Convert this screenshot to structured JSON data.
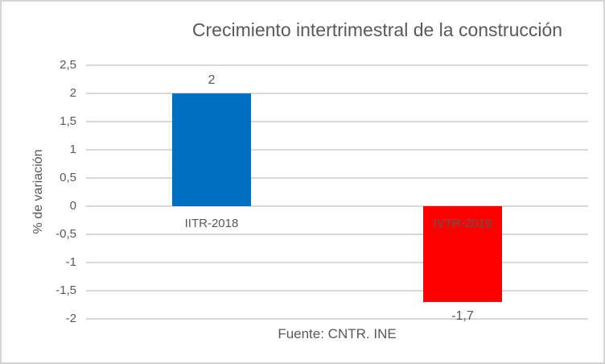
{
  "window": {
    "background": "#FFFFFF",
    "border_color": "#D6D3D3"
  },
  "chart_data": {
    "type": "bar",
    "title": "Crecimiento intertrimestral de la construcción",
    "ylabel": "% de variación",
    "xlabel": "",
    "source": "Fuente: CNTR. INE",
    "categories": [
      "IITR-2018",
      "IVTR-2019"
    ],
    "values": [
      2,
      -1.7
    ],
    "data_labels": [
      "2",
      "-1,7"
    ],
    "bar_colors": [
      "#0070C0",
      "#FF0000"
    ],
    "ylim": [
      -2,
      2.5
    ],
    "ytick_step": 0.5,
    "ytick_labels": [
      "2,5",
      "2",
      "1,5",
      "1",
      "0,5",
      "0",
      "-0,5",
      "-1",
      "-1,5",
      "-2"
    ],
    "grid": true,
    "legend": "none",
    "text_color": "#595959",
    "gridline_color": "#D9D9D9"
  }
}
